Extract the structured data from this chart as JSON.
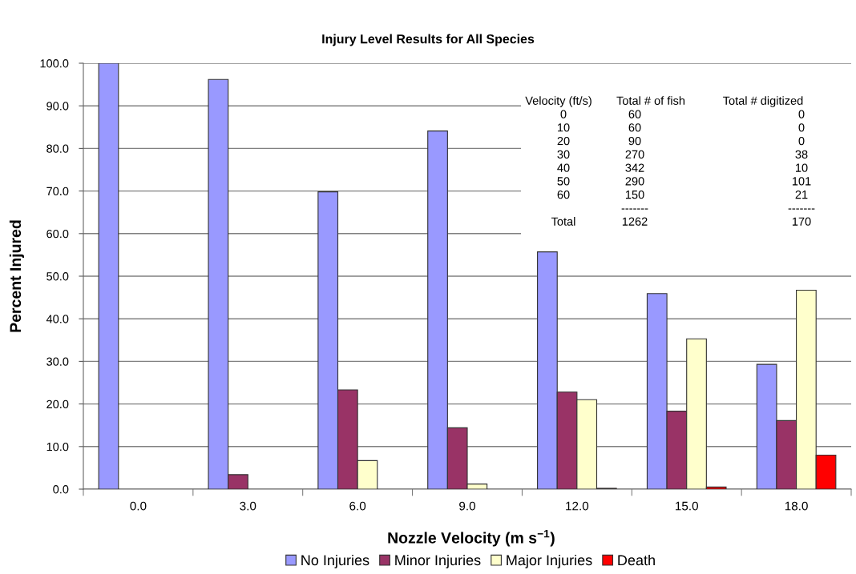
{
  "chart_data": {
    "type": "bar",
    "title": "Injury Level Results for All Species",
    "xlabel": "Nozzle Velocity (m s$^{−1}$)",
    "ylabel": "Percent Injured",
    "categories": [
      "0.0",
      "3.0",
      "6.0",
      "9.0",
      "12.0",
      "15.0",
      "18.0"
    ],
    "series": [
      {
        "name": "No Injuries",
        "color": "#9999ff",
        "values": [
          100.0,
          96.2,
          69.8,
          84.1,
          55.7,
          45.9,
          29.3
        ]
      },
      {
        "name": "Minor Injuries",
        "color": "#993366",
        "values": [
          null,
          3.4,
          23.3,
          14.4,
          22.8,
          18.3,
          16.1
        ]
      },
      {
        "name": "Major Injuries",
        "color": "#ffffcc",
        "values": [
          null,
          null,
          6.7,
          1.2,
          21.0,
          35.3,
          46.7
        ]
      },
      {
        "name": "Death",
        "color": "#ff0000",
        "values": [
          null,
          null,
          null,
          null,
          0.2,
          0.5,
          8.0
        ]
      }
    ],
    "ylim": [
      0,
      100
    ],
    "yticks": [
      {
        "value": 0,
        "label": "0.0"
      },
      {
        "value": 10,
        "label": "10.0"
      },
      {
        "value": 20,
        "label": "20.0"
      },
      {
        "value": 30,
        "label": "30.0"
      },
      {
        "value": 40,
        "label": "40.0"
      },
      {
        "value": 50,
        "label": "50.0"
      },
      {
        "value": 60,
        "label": "60.0"
      },
      {
        "value": 70,
        "label": "70.0"
      },
      {
        "value": 80,
        "label": "80.0"
      },
      {
        "value": 90,
        "label": "90.0"
      },
      {
        "value": 100,
        "label": "100.0"
      }
    ],
    "grid": "y",
    "legend": "bottom",
    "annotations": [
      "Velocity (ft/s)",
      "Total # of fish",
      "Total # digitized",
      "0\n10\n20\n30\n40\n50\n60\n\nTotal",
      "60\n60\n90\n270\n342\n290\n150\n-------\n1262",
      "0\n0\n0\n38\n10\n101\n21\n-------\n170"
    ]
  }
}
